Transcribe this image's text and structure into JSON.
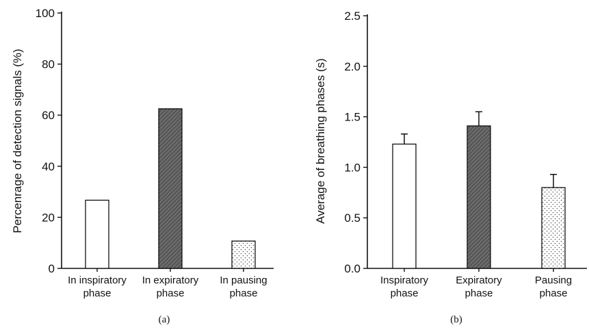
{
  "chart_data": [
    {
      "type": "bar",
      "panel_label": "(a)",
      "categories": [
        [
          "In inspiratory",
          "phase"
        ],
        [
          "In expiratory",
          "phase"
        ],
        [
          "In pausing",
          "phase"
        ]
      ],
      "values": [
        26.7,
        62.5,
        10.7
      ],
      "fills": [
        "white",
        "dark-hatch",
        "dots"
      ],
      "xlabel": "",
      "ylabel": "Percenrage of detection signals (%)",
      "ylim": [
        0,
        100
      ],
      "yticks": [
        0,
        20,
        40,
        60,
        80,
        100
      ],
      "ytick_labels": [
        "0",
        "20",
        "40",
        "60",
        "80",
        "100"
      ],
      "grid": false,
      "legend": "none"
    },
    {
      "type": "bar",
      "panel_label": "(b)",
      "categories": [
        [
          "Inspiratory",
          "phase"
        ],
        [
          "Expiratory",
          "phase"
        ],
        [
          "Pausing",
          "phase"
        ]
      ],
      "values": [
        1.23,
        1.41,
        0.8
      ],
      "error_upper": [
        0.1,
        0.14,
        0.13
      ],
      "fills": [
        "white",
        "dark-hatch",
        "dots"
      ],
      "xlabel": "",
      "ylabel": "Average of breathing phases (s)",
      "ylim": [
        0,
        2.5
      ],
      "yticks": [
        0,
        0.5,
        1.0,
        1.5,
        2.0,
        2.5
      ],
      "ytick_labels": [
        "0.0",
        "0.5",
        "1.0",
        "1.5",
        "2.0",
        "2.5"
      ],
      "grid": false,
      "legend": "none"
    }
  ],
  "colors": {
    "axis": "#111111",
    "bar_edge": "#111111",
    "bar_white": "#ffffff",
    "bar_dark": "#6b6b6b",
    "bar_dark_hatch": "#3a3a3a",
    "dot": "#555555"
  }
}
